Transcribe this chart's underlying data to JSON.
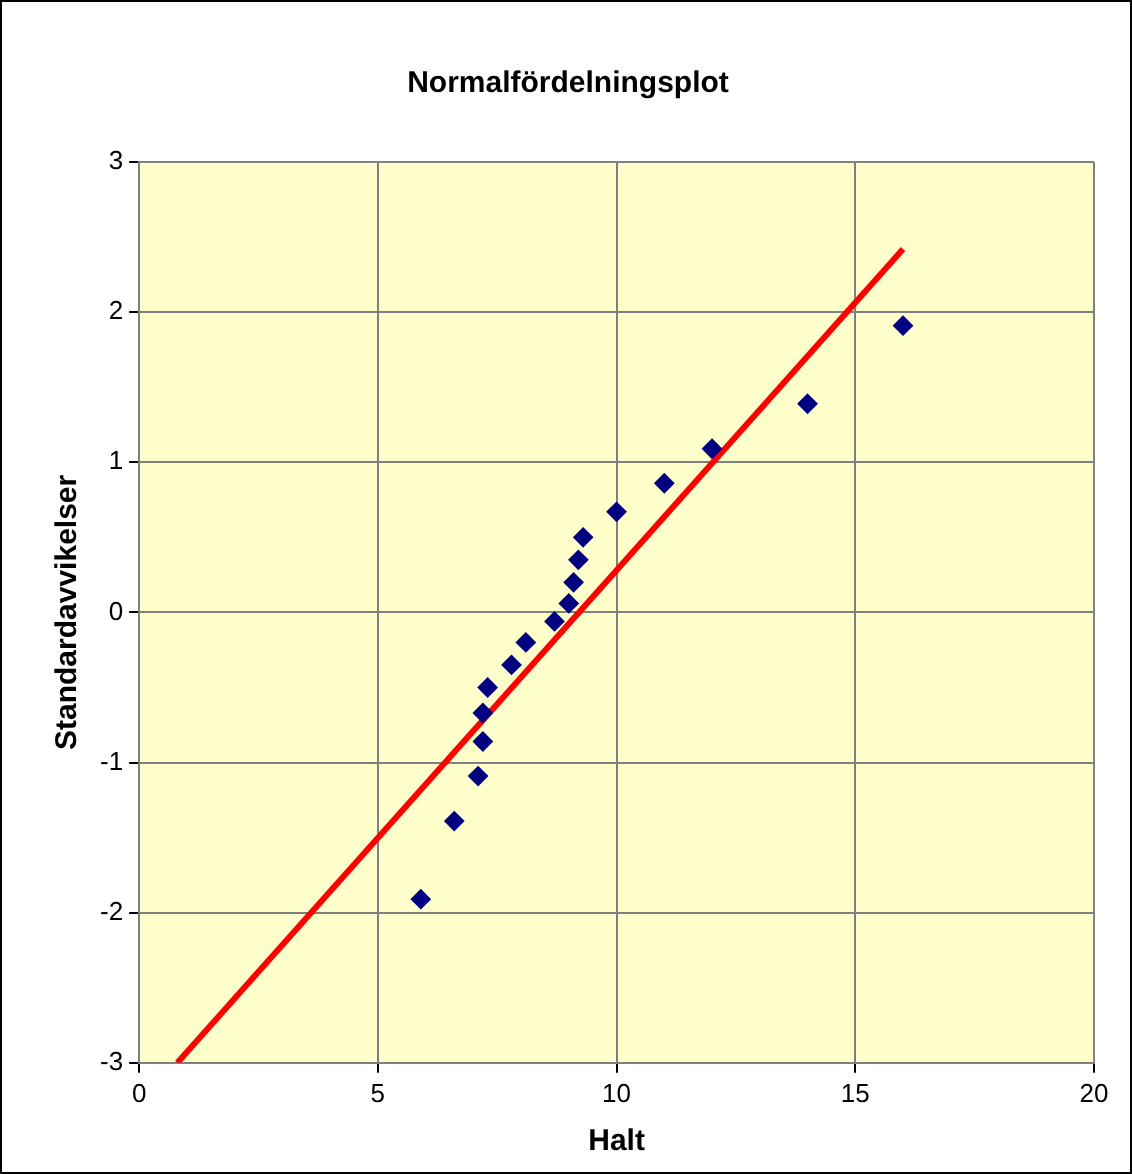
{
  "chart_data": {
    "type": "scatter",
    "title": "Normalfördelningsplot",
    "xlabel": "Halt",
    "ylabel": "Standardavvikelser",
    "xlim": [
      0,
      20
    ],
    "xticks": [
      0,
      5,
      10,
      15,
      20
    ],
    "ylim": [
      -3,
      3
    ],
    "yticks": [
      -3,
      -2,
      -1,
      0,
      1,
      2,
      3
    ],
    "grid": true,
    "legend": false,
    "series": [
      {
        "marker": "diamond",
        "color": "#000080",
        "x": [
          5.9,
          6.6,
          7.1,
          7.2,
          7.2,
          7.3,
          7.8,
          8.1,
          8.7,
          9.0,
          9.1,
          9.2,
          9.3,
          10,
          11,
          12,
          14,
          16
        ],
        "values": [
          -1.91,
          -1.39,
          -1.09,
          -0.86,
          -0.67,
          -0.5,
          -0.35,
          -0.2,
          -0.06,
          0.06,
          0.2,
          0.35,
          0.5,
          0.67,
          0.86,
          1.09,
          1.39,
          1.91
        ]
      },
      {
        "type": "line",
        "color": "#ff0000",
        "line_style": "solid",
        "x": [
          0.8,
          16
        ],
        "values": [
          -3,
          2.42
        ]
      }
    ]
  }
}
